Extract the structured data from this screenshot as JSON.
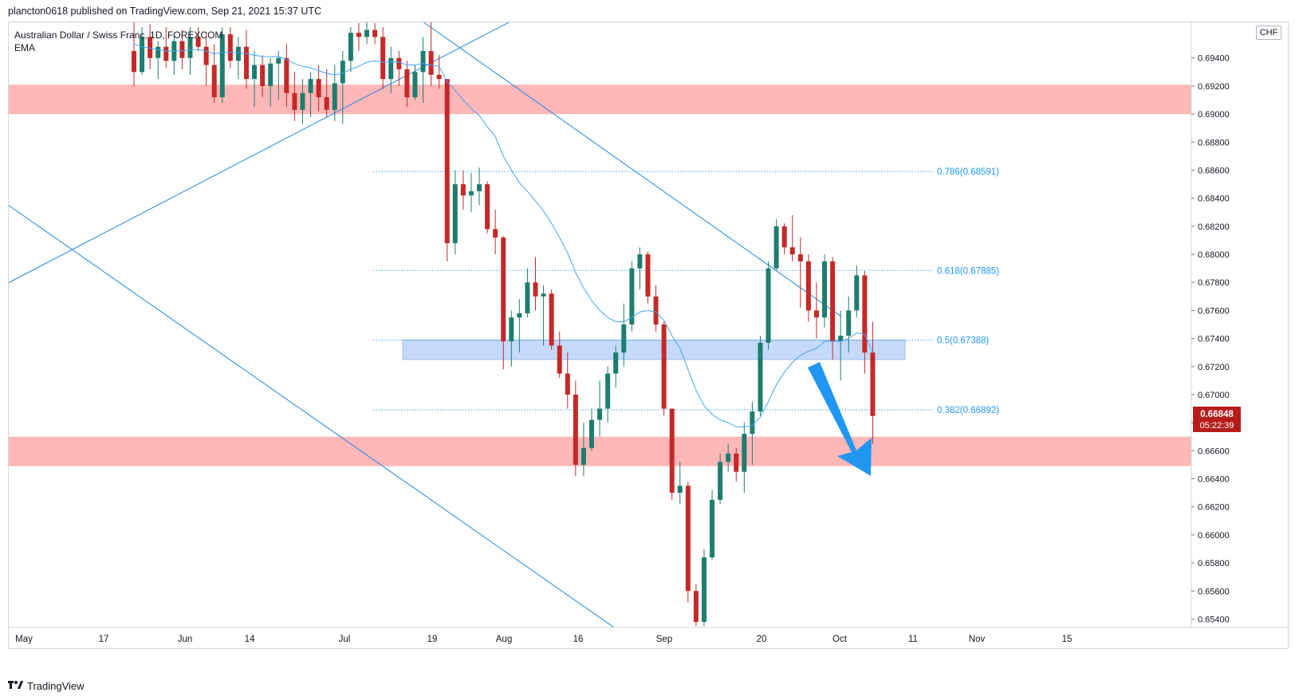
{
  "header": {
    "publisher": "plancton0618 published on TradingView.com, Sep 21, 2021 15:37 UTC"
  },
  "legend": {
    "symbol": "Australian Dollar / Swiss Franc, 1D, FOREXCOM",
    "indicator": "EMA"
  },
  "footer": {
    "brand": "TradingView",
    "logo_icon": "tradingview-logo-icon"
  },
  "price_badge": {
    "price": "0.66848",
    "countdown": "05:22:39",
    "color": "#b71c1c"
  },
  "currency_label": "CHF",
  "colors": {
    "up": "#1e7d6e",
    "down": "#c62828",
    "ema": "#42a5f5",
    "trendline": "#1e88e5",
    "resistance_zone": "#ffb7b7",
    "support_zone": "#ffb7b7",
    "blue_zone": "#c5dafa",
    "arrow": "#2196f3"
  },
  "chart_data": {
    "type": "candlestick",
    "symbol": "AUDCHF",
    "timeframe": "1D",
    "y_axis": {
      "ticks": [
        "0.65400",
        "0.65600",
        "0.65800",
        "0.66000",
        "0.66200",
        "0.66400",
        "0.66600",
        "0.66800",
        "0.67000",
        "0.67200",
        "0.67400",
        "0.67600",
        "0.67800",
        "0.68000",
        "0.68200",
        "0.68400",
        "0.68600",
        "0.68800",
        "0.69000",
        "0.69200",
        "0.69400"
      ],
      "range": [
        0.6534,
        0.6966
      ]
    },
    "x_axis": {
      "ticks": [
        "May",
        "17",
        "Jun",
        "14",
        "Jul",
        "19",
        "Aug",
        "16",
        "Sep",
        "20",
        "Oct",
        "11",
        "Nov",
        "15"
      ]
    },
    "fibonacci": [
      {
        "label": "0.786(0.68591)",
        "value": 0.68591
      },
      {
        "label": "0.618(0.67885)",
        "value": 0.67885
      },
      {
        "label": "0.5(0.67388)",
        "value": 0.67388
      },
      {
        "label": "0.382(0.66892)",
        "value": 0.66892
      }
    ],
    "zones": [
      {
        "name": "resistance",
        "from": 0.69,
        "to": 0.6921
      },
      {
        "name": "support",
        "from": 0.6649,
        "to": 0.667
      },
      {
        "name": "retest",
        "from": 0.6725,
        "to": 0.6739
      }
    ],
    "candles": [
      {
        "o": 0.6945,
        "h": 0.6968,
        "l": 0.692,
        "c": 0.693
      },
      {
        "o": 0.693,
        "h": 0.6962,
        "l": 0.6928,
        "c": 0.6955
      },
      {
        "o": 0.6955,
        "h": 0.6964,
        "l": 0.6932,
        "c": 0.694
      },
      {
        "o": 0.694,
        "h": 0.6952,
        "l": 0.6925,
        "c": 0.6948
      },
      {
        "o": 0.6948,
        "h": 0.6962,
        "l": 0.6933,
        "c": 0.6938
      },
      {
        "o": 0.6938,
        "h": 0.6958,
        "l": 0.6928,
        "c": 0.6952
      },
      {
        "o": 0.6952,
        "h": 0.696,
        "l": 0.6932,
        "c": 0.694
      },
      {
        "o": 0.694,
        "h": 0.6962,
        "l": 0.6928,
        "c": 0.6955
      },
      {
        "o": 0.6955,
        "h": 0.6962,
        "l": 0.6945,
        "c": 0.6948
      },
      {
        "o": 0.6948,
        "h": 0.6958,
        "l": 0.692,
        "c": 0.6935
      },
      {
        "o": 0.6935,
        "h": 0.695,
        "l": 0.6908,
        "c": 0.6912
      },
      {
        "o": 0.6912,
        "h": 0.6962,
        "l": 0.6908,
        "c": 0.6957
      },
      {
        "o": 0.6957,
        "h": 0.6962,
        "l": 0.6933,
        "c": 0.6938
      },
      {
        "o": 0.6938,
        "h": 0.6955,
        "l": 0.6925,
        "c": 0.6948
      },
      {
        "o": 0.6948,
        "h": 0.696,
        "l": 0.6918,
        "c": 0.6925
      },
      {
        "o": 0.6925,
        "h": 0.6945,
        "l": 0.6905,
        "c": 0.6935
      },
      {
        "o": 0.6935,
        "h": 0.6942,
        "l": 0.6912,
        "c": 0.692
      },
      {
        "o": 0.692,
        "h": 0.694,
        "l": 0.6905,
        "c": 0.6936
      },
      {
        "o": 0.6936,
        "h": 0.6945,
        "l": 0.691,
        "c": 0.694
      },
      {
        "o": 0.694,
        "h": 0.695,
        "l": 0.6905,
        "c": 0.6915
      },
      {
        "o": 0.6915,
        "h": 0.693,
        "l": 0.6895,
        "c": 0.6903
      },
      {
        "o": 0.6903,
        "h": 0.6925,
        "l": 0.6893,
        "c": 0.6915
      },
      {
        "o": 0.6915,
        "h": 0.693,
        "l": 0.6898,
        "c": 0.6925
      },
      {
        "o": 0.6925,
        "h": 0.6935,
        "l": 0.6902,
        "c": 0.6912
      },
      {
        "o": 0.6912,
        "h": 0.6932,
        "l": 0.6898,
        "c": 0.6903
      },
      {
        "o": 0.6903,
        "h": 0.6935,
        "l": 0.6895,
        "c": 0.6922
      },
      {
        "o": 0.6922,
        "h": 0.6945,
        "l": 0.6893,
        "c": 0.6938
      },
      {
        "o": 0.6938,
        "h": 0.6962,
        "l": 0.693,
        "c": 0.6958
      },
      {
        "o": 0.6958,
        "h": 0.6965,
        "l": 0.6945,
        "c": 0.6955
      },
      {
        "o": 0.6955,
        "h": 0.6966,
        "l": 0.695,
        "c": 0.696
      },
      {
        "o": 0.696,
        "h": 0.6965,
        "l": 0.695,
        "c": 0.6955
      },
      {
        "o": 0.6955,
        "h": 0.6962,
        "l": 0.6918,
        "c": 0.6925
      },
      {
        "o": 0.6925,
        "h": 0.6948,
        "l": 0.6915,
        "c": 0.694
      },
      {
        "o": 0.694,
        "h": 0.6945,
        "l": 0.692,
        "c": 0.6932
      },
      {
        "o": 0.6932,
        "h": 0.6938,
        "l": 0.6905,
        "c": 0.6912
      },
      {
        "o": 0.6912,
        "h": 0.6935,
        "l": 0.691,
        "c": 0.693
      },
      {
        "o": 0.693,
        "h": 0.6955,
        "l": 0.6908,
        "c": 0.6945
      },
      {
        "o": 0.6945,
        "h": 0.6968,
        "l": 0.692,
        "c": 0.6928
      },
      {
        "o": 0.6928,
        "h": 0.6942,
        "l": 0.6918,
        "c": 0.6925
      },
      {
        "o": 0.6925,
        "h": 0.6925,
        "l": 0.6795,
        "c": 0.6808
      },
      {
        "o": 0.6808,
        "h": 0.686,
        "l": 0.68,
        "c": 0.685
      },
      {
        "o": 0.685,
        "h": 0.686,
        "l": 0.6832,
        "c": 0.6842
      },
      {
        "o": 0.6842,
        "h": 0.6858,
        "l": 0.683,
        "c": 0.6845
      },
      {
        "o": 0.6845,
        "h": 0.6862,
        "l": 0.6835,
        "c": 0.685
      },
      {
        "o": 0.685,
        "h": 0.6852,
        "l": 0.6815,
        "c": 0.6818
      },
      {
        "o": 0.6818,
        "h": 0.6832,
        "l": 0.68,
        "c": 0.6812
      },
      {
        "o": 0.6812,
        "h": 0.6813,
        "l": 0.6718,
        "c": 0.6738
      },
      {
        "o": 0.6738,
        "h": 0.676,
        "l": 0.672,
        "c": 0.6755
      },
      {
        "o": 0.6755,
        "h": 0.6768,
        "l": 0.673,
        "c": 0.6758
      },
      {
        "o": 0.6758,
        "h": 0.679,
        "l": 0.6755,
        "c": 0.678
      },
      {
        "o": 0.678,
        "h": 0.6798,
        "l": 0.676,
        "c": 0.677
      },
      {
        "o": 0.677,
        "h": 0.6778,
        "l": 0.6735,
        "c": 0.6772
      },
      {
        "o": 0.6772,
        "h": 0.6775,
        "l": 0.6732,
        "c": 0.6735
      },
      {
        "o": 0.6735,
        "h": 0.6745,
        "l": 0.6712,
        "c": 0.6715
      },
      {
        "o": 0.6715,
        "h": 0.673,
        "l": 0.669,
        "c": 0.67
      },
      {
        "o": 0.67,
        "h": 0.671,
        "l": 0.6642,
        "c": 0.665
      },
      {
        "o": 0.665,
        "h": 0.668,
        "l": 0.6642,
        "c": 0.6662
      },
      {
        "o": 0.6662,
        "h": 0.669,
        "l": 0.666,
        "c": 0.6682
      },
      {
        "o": 0.6682,
        "h": 0.671,
        "l": 0.667,
        "c": 0.669
      },
      {
        "o": 0.669,
        "h": 0.672,
        "l": 0.668,
        "c": 0.6715
      },
      {
        "o": 0.6715,
        "h": 0.6735,
        "l": 0.6705,
        "c": 0.673
      },
      {
        "o": 0.673,
        "h": 0.6765,
        "l": 0.672,
        "c": 0.675
      },
      {
        "o": 0.675,
        "h": 0.6795,
        "l": 0.6745,
        "c": 0.679
      },
      {
        "o": 0.679,
        "h": 0.6805,
        "l": 0.6775,
        "c": 0.68
      },
      {
        "o": 0.68,
        "h": 0.6802,
        "l": 0.6765,
        "c": 0.677
      },
      {
        "o": 0.677,
        "h": 0.6778,
        "l": 0.6745,
        "c": 0.675
      },
      {
        "o": 0.675,
        "h": 0.6752,
        "l": 0.6685,
        "c": 0.669
      },
      {
        "o": 0.669,
        "h": 0.669,
        "l": 0.6625,
        "c": 0.663
      },
      {
        "o": 0.663,
        "h": 0.6652,
        "l": 0.6622,
        "c": 0.6635
      },
      {
        "o": 0.6635,
        "h": 0.6638,
        "l": 0.6552,
        "c": 0.656
      },
      {
        "o": 0.656,
        "h": 0.6565,
        "l": 0.6535,
        "c": 0.6538
      },
      {
        "o": 0.6538,
        "h": 0.659,
        "l": 0.6535,
        "c": 0.6584
      },
      {
        "o": 0.6584,
        "h": 0.6632,
        "l": 0.6582,
        "c": 0.6625
      },
      {
        "o": 0.6625,
        "h": 0.6658,
        "l": 0.6622,
        "c": 0.6652
      },
      {
        "o": 0.6652,
        "h": 0.6665,
        "l": 0.6645,
        "c": 0.6658
      },
      {
        "o": 0.6658,
        "h": 0.6662,
        "l": 0.6638,
        "c": 0.6645
      },
      {
        "o": 0.6645,
        "h": 0.668,
        "l": 0.663,
        "c": 0.6672
      },
      {
        "o": 0.6672,
        "h": 0.6695,
        "l": 0.665,
        "c": 0.6688
      },
      {
        "o": 0.6688,
        "h": 0.6742,
        "l": 0.6685,
        "c": 0.6737
      },
      {
        "o": 0.6737,
        "h": 0.6795,
        "l": 0.6732,
        "c": 0.679
      },
      {
        "o": 0.679,
        "h": 0.6825,
        "l": 0.6788,
        "c": 0.682
      },
      {
        "o": 0.682,
        "h": 0.6822,
        "l": 0.68,
        "c": 0.6805
      },
      {
        "o": 0.6805,
        "h": 0.6828,
        "l": 0.6795,
        "c": 0.68
      },
      {
        "o": 0.68,
        "h": 0.6812,
        "l": 0.6762,
        "c": 0.6795
      },
      {
        "o": 0.6795,
        "h": 0.68,
        "l": 0.6752,
        "c": 0.676
      },
      {
        "o": 0.676,
        "h": 0.678,
        "l": 0.674,
        "c": 0.6755
      },
      {
        "o": 0.6755,
        "h": 0.68,
        "l": 0.6748,
        "c": 0.6795
      },
      {
        "o": 0.6795,
        "h": 0.6798,
        "l": 0.6725,
        "c": 0.6738
      },
      {
        "o": 0.6738,
        "h": 0.676,
        "l": 0.671,
        "c": 0.6742
      },
      {
        "o": 0.6742,
        "h": 0.677,
        "l": 0.673,
        "c": 0.676
      },
      {
        "o": 0.676,
        "h": 0.6792,
        "l": 0.6755,
        "c": 0.6785
      },
      {
        "o": 0.6785,
        "h": 0.6788,
        "l": 0.6715,
        "c": 0.673
      },
      {
        "o": 0.673,
        "h": 0.6752,
        "l": 0.6665,
        "c": 0.66848
      }
    ],
    "ema": [
      0.695,
      0.6948,
      0.6947,
      0.6946,
      0.6945,
      0.6945,
      0.6945,
      0.6946,
      0.6946,
      0.6945,
      0.6943,
      0.6944,
      0.6944,
      0.6944,
      0.6943,
      0.6942,
      0.6941,
      0.6941,
      0.6941,
      0.6939,
      0.6936,
      0.6934,
      0.6933,
      0.6931,
      0.6929,
      0.6928,
      0.6929,
      0.6932,
      0.6934,
      0.6937,
      0.6938,
      0.6937,
      0.6937,
      0.6937,
      0.6935,
      0.6935,
      0.6936,
      0.6935,
      0.6934,
      0.6923,
      0.6917,
      0.691,
      0.6904,
      0.6899,
      0.6891,
      0.6884,
      0.687,
      0.686,
      0.6851,
      0.6845,
      0.6838,
      0.6831,
      0.6822,
      0.6812,
      0.6801,
      0.6787,
      0.6776,
      0.6767,
      0.676,
      0.6755,
      0.6752,
      0.6752,
      0.6755,
      0.6759,
      0.676,
      0.6759,
      0.6753,
      0.6742,
      0.6733,
      0.6718,
      0.6703,
      0.6692,
      0.6686,
      0.6682,
      0.668,
      0.6677,
      0.6677,
      0.6678,
      0.6684,
      0.6695,
      0.6707,
      0.6716,
      0.6723,
      0.6728,
      0.6731,
      0.6733,
      0.6738,
      0.6738,
      0.6738,
      0.674,
      0.6744,
      0.6743,
      0.673
    ]
  }
}
